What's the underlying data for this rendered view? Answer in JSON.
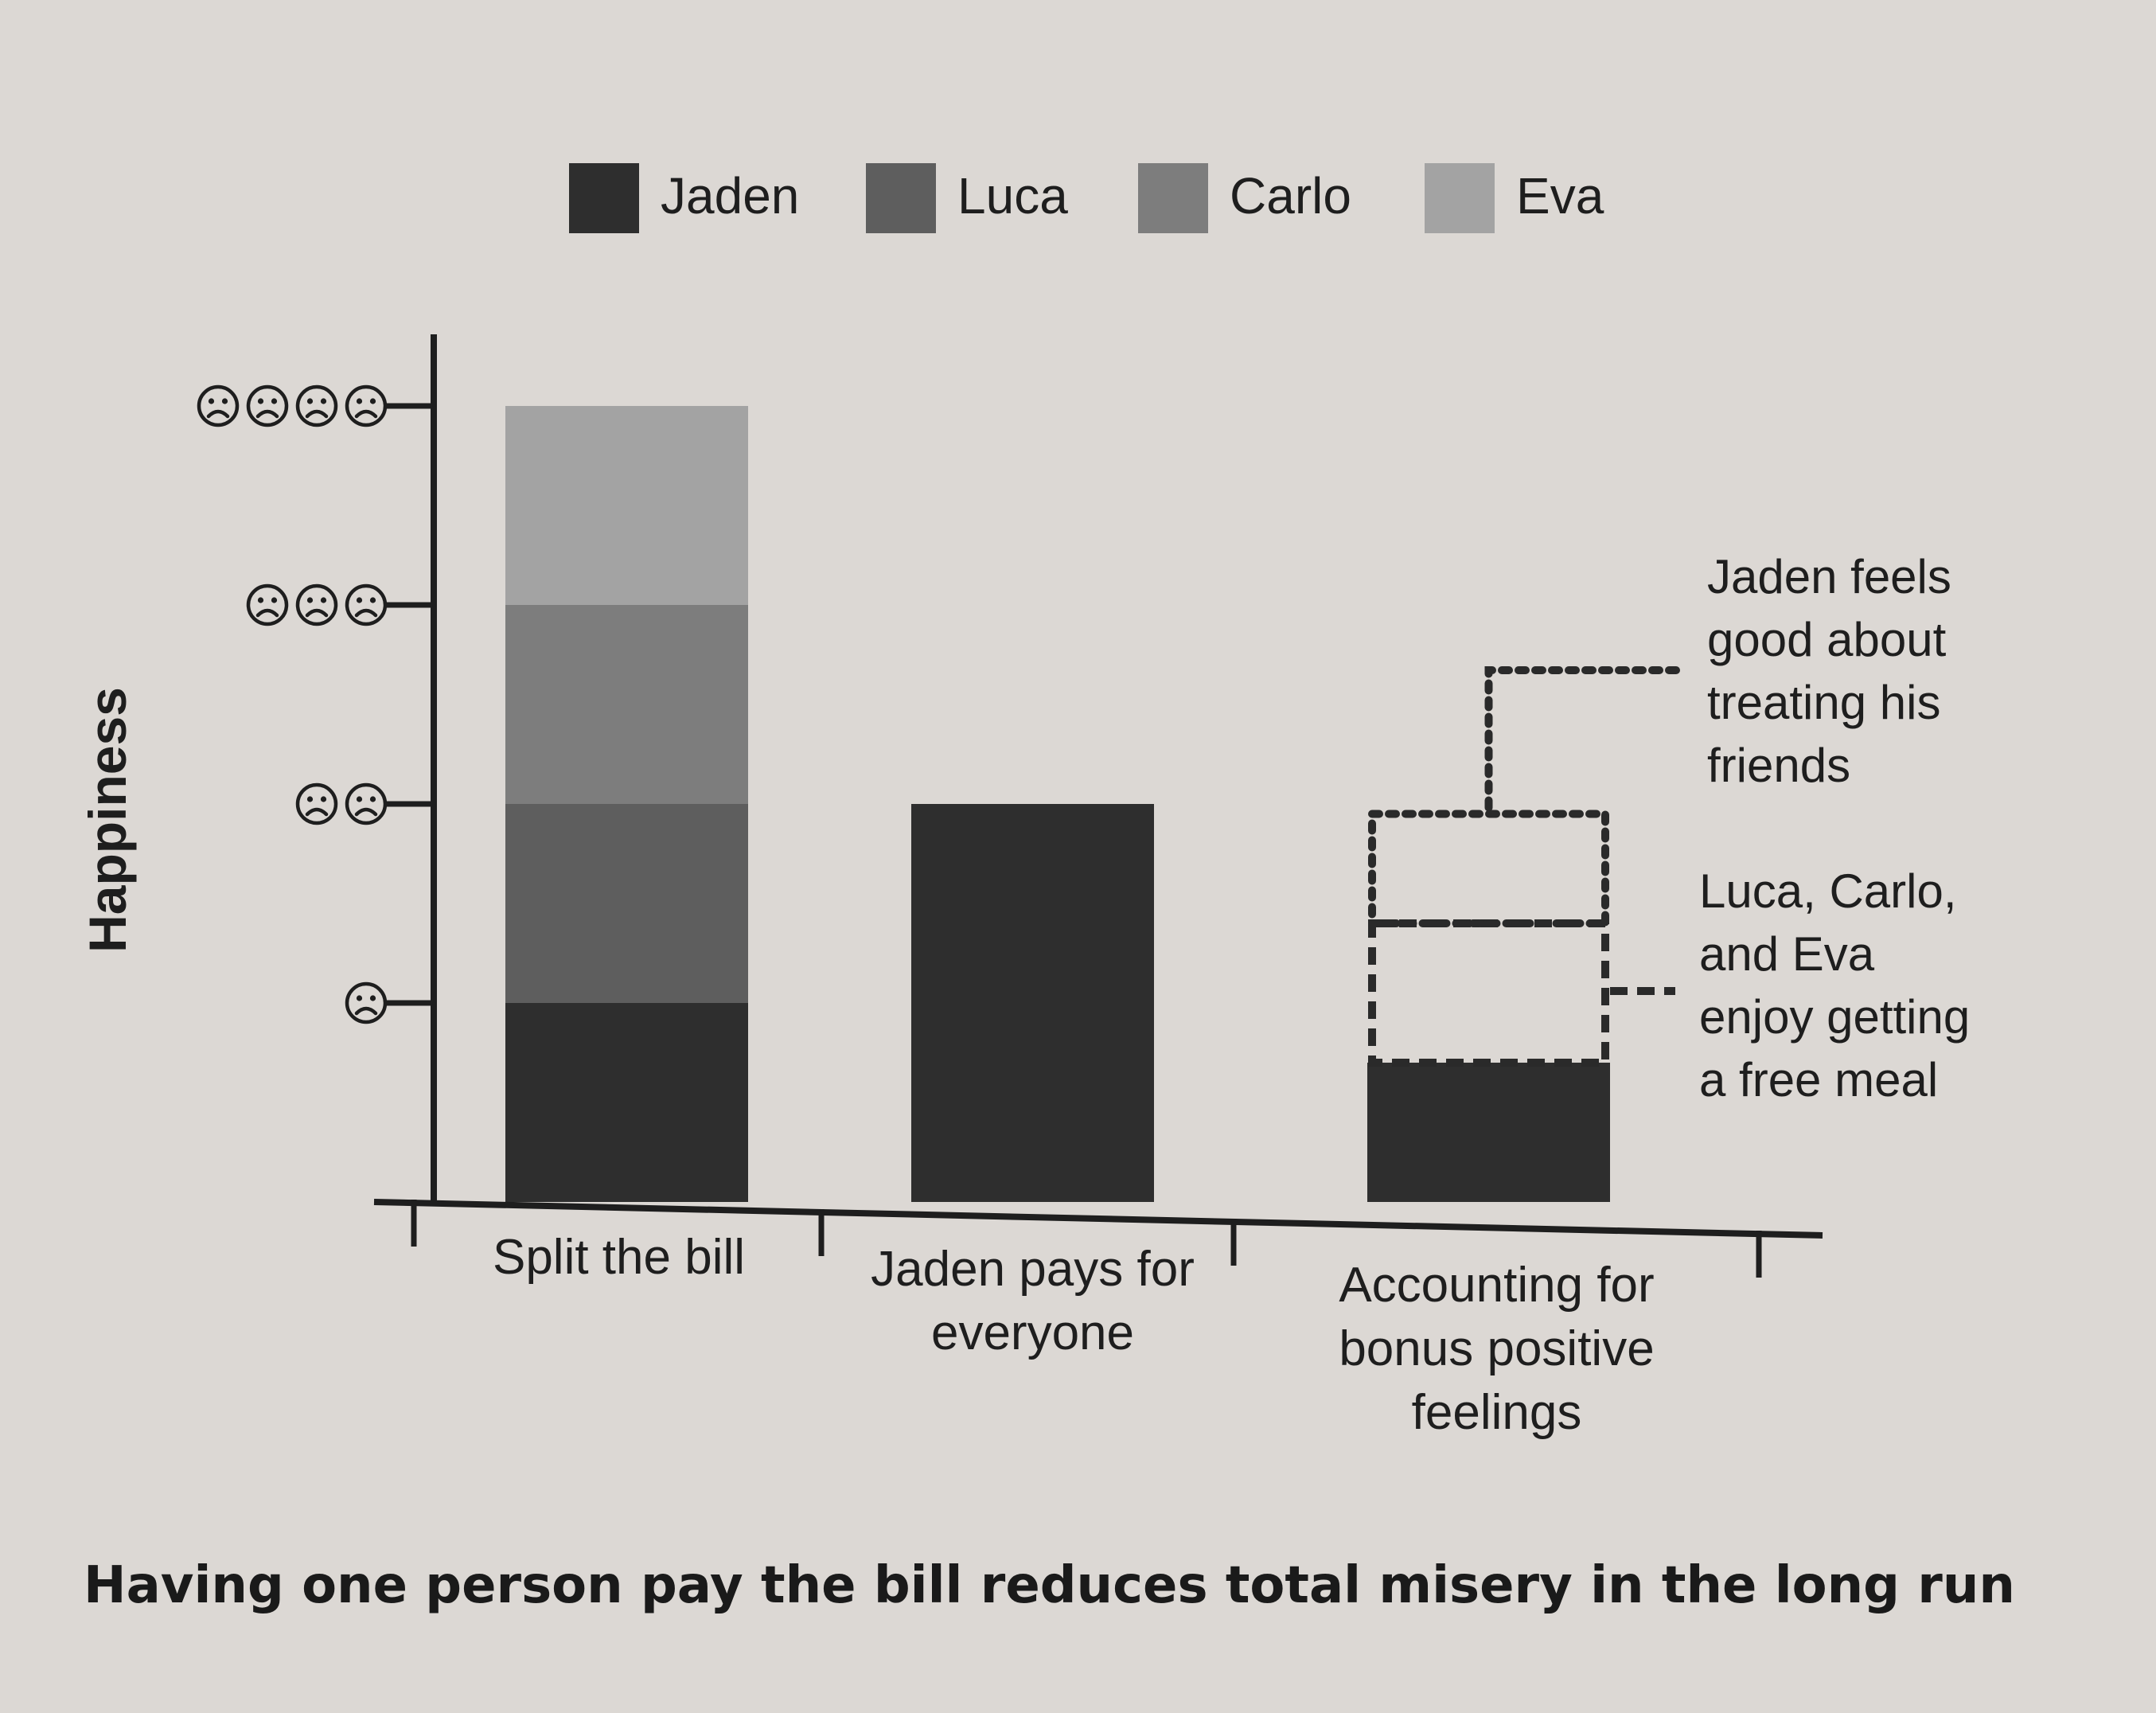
{
  "chart_data": {
    "type": "bar",
    "stacked": true,
    "title": "",
    "xlabel": "",
    "ylabel": "Happiness",
    "categories": [
      "Split the bill",
      "Jaden pays for everyone",
      "Accounting for bonus positive feelings"
    ],
    "category_lines": [
      [
        "Split the bill"
      ],
      [
        "Jaden pays for",
        "everyone"
      ],
      [
        "Accounting for",
        "bonus positive",
        "feelings"
      ]
    ],
    "series": [
      {
        "name": "Jaden",
        "values": [
          1,
          2,
          0.7
        ],
        "color": "#2e2e2e"
      },
      {
        "name": "Luca",
        "values": [
          1,
          0,
          0
        ],
        "color": "#5e5e5e"
      },
      {
        "name": "Carlo",
        "values": [
          1,
          0,
          0
        ],
        "color": "#7d7d7d"
      },
      {
        "name": "Eva",
        "values": [
          1,
          0,
          0
        ],
        "color": "#a3a3a3"
      }
    ],
    "bonus": [
      {
        "category": "Accounting for bonus positive feelings",
        "from": 0.7,
        "to": 1.4,
        "style": "dashed",
        "label_lines": [
          "Luca, Carlo,",
          "and Eva",
          "enjoy getting",
          "a free meal"
        ]
      },
      {
        "category": "Accounting for bonus positive feelings",
        "from": 1.4,
        "to": 1.95,
        "style": "dotted",
        "label_lines": [
          "Jaden feels",
          "good about",
          "treating his",
          "friends"
        ]
      }
    ],
    "y_ticks": [
      {
        "value": 1,
        "faces": 1
      },
      {
        "value": 2,
        "faces": 2
      },
      {
        "value": 3,
        "faces": 3
      },
      {
        "value": 4,
        "faces": 4
      }
    ],
    "ylim": [
      0,
      4.4
    ],
    "grid": false,
    "legend": {
      "position": "top",
      "entries": [
        "Jaden",
        "Luca",
        "Carlo",
        "Eva"
      ]
    }
  },
  "caption": "Having one person pay the bill reduces total misery in the long run",
  "icons": {
    "tick_marker": "sad-face-icon"
  }
}
